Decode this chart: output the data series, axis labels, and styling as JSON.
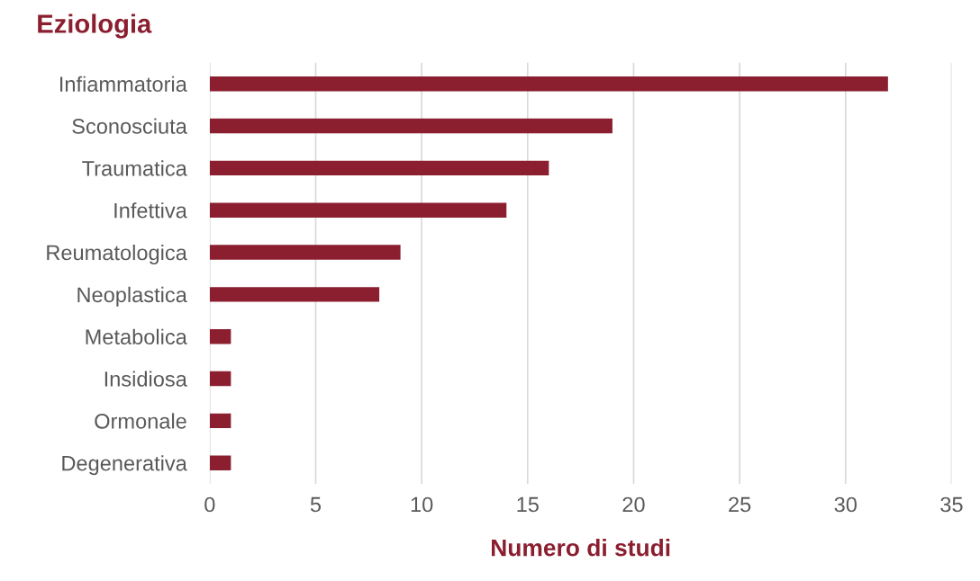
{
  "chart_data": {
    "type": "bar",
    "orientation": "horizontal",
    "title": "Eziologia",
    "xlabel": "Numero di studi",
    "categories": [
      "Infiammatoria",
      "Sconosciuta",
      "Traumatica",
      "Infettiva",
      "Reumatologica",
      "Neoplastica",
      "Metabolica",
      "Insidiosa",
      "Ormonale",
      "Degenerativa"
    ],
    "values": [
      32,
      19,
      16,
      14,
      9,
      8,
      1,
      1,
      1,
      1
    ],
    "color": "#8b1f30",
    "xlim": [
      0,
      35
    ],
    "xticks": [
      0,
      5,
      10,
      15,
      20,
      25,
      30,
      35
    ],
    "grid": "x",
    "legend": false
  }
}
